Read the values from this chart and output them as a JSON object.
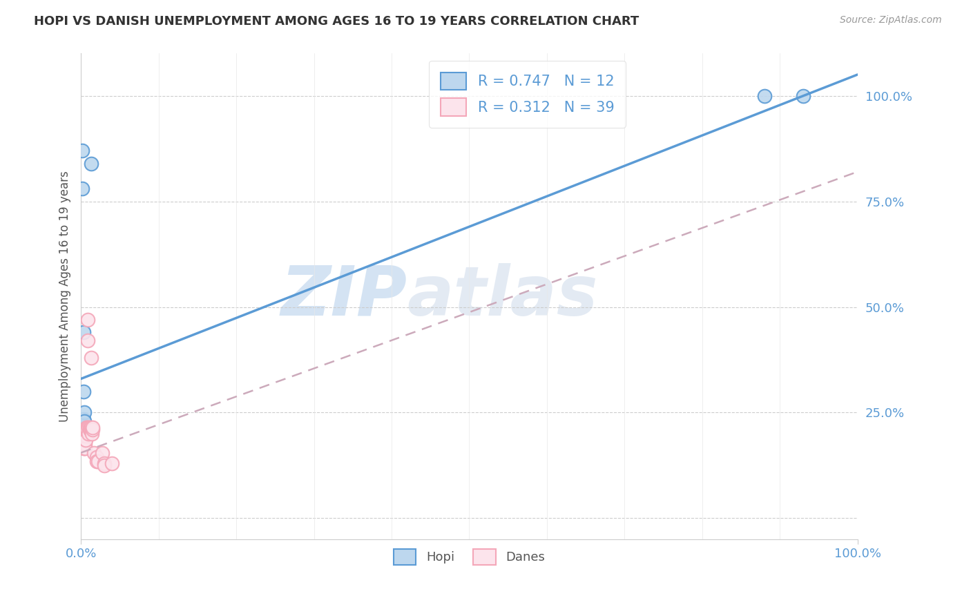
{
  "title": "HOPI VS DANISH UNEMPLOYMENT AMONG AGES 16 TO 19 YEARS CORRELATION CHART",
  "source": "Source: ZipAtlas.com",
  "ylabel": "Unemployment Among Ages 16 to 19 years",
  "background_color": "#ffffff",
  "watermark_zip": "ZIP",
  "watermark_atlas": "atlas",
  "hopi_color": "#5b9bd5",
  "hopi_fill": "#bdd7ee",
  "danes_color": "#f4a7b9",
  "danes_fill": "#fce4ec",
  "hopi_R": 0.747,
  "hopi_N": 12,
  "danes_R": 0.312,
  "danes_N": 39,
  "hopi_points": [
    [
      0.002,
      0.87
    ],
    [
      0.002,
      0.78
    ],
    [
      0.003,
      0.44
    ],
    [
      0.003,
      0.235
    ],
    [
      0.003,
      0.21
    ],
    [
      0.003,
      0.3
    ],
    [
      0.004,
      0.25
    ],
    [
      0.004,
      0.23
    ],
    [
      0.004,
      0.2
    ],
    [
      0.013,
      0.84
    ],
    [
      0.88,
      1.0
    ],
    [
      0.93,
      1.0
    ]
  ],
  "danes_points": [
    [
      0.002,
      0.175
    ],
    [
      0.003,
      0.185
    ],
    [
      0.003,
      0.17
    ],
    [
      0.003,
      0.165
    ],
    [
      0.004,
      0.195
    ],
    [
      0.004,
      0.185
    ],
    [
      0.004,
      0.175
    ],
    [
      0.004,
      0.165
    ],
    [
      0.005,
      0.2
    ],
    [
      0.005,
      0.185
    ],
    [
      0.005,
      0.175
    ],
    [
      0.005,
      0.165
    ],
    [
      0.006,
      0.195
    ],
    [
      0.006,
      0.185
    ],
    [
      0.007,
      0.215
    ],
    [
      0.007,
      0.21
    ],
    [
      0.008,
      0.215
    ],
    [
      0.008,
      0.21
    ],
    [
      0.009,
      0.42
    ],
    [
      0.009,
      0.47
    ],
    [
      0.01,
      0.215
    ],
    [
      0.01,
      0.2
    ],
    [
      0.011,
      0.215
    ],
    [
      0.011,
      0.21
    ],
    [
      0.012,
      0.21
    ],
    [
      0.013,
      0.215
    ],
    [
      0.013,
      0.38
    ],
    [
      0.014,
      0.21
    ],
    [
      0.014,
      0.2
    ],
    [
      0.015,
      0.21
    ],
    [
      0.015,
      0.215
    ],
    [
      0.017,
      0.155
    ],
    [
      0.02,
      0.145
    ],
    [
      0.02,
      0.135
    ],
    [
      0.022,
      0.135
    ],
    [
      0.027,
      0.155
    ],
    [
      0.03,
      0.13
    ],
    [
      0.03,
      0.125
    ],
    [
      0.04,
      0.13
    ]
  ],
  "hopi_line_x": [
    0.0,
    1.0
  ],
  "hopi_line_y": [
    0.33,
    1.05
  ],
  "danes_line_x": [
    0.0,
    1.0
  ],
  "danes_line_y": [
    0.155,
    0.82
  ],
  "xlim": [
    0.0,
    1.0
  ],
  "ylim": [
    -0.05,
    1.1
  ],
  "xtick_positions": [
    0.0,
    1.0
  ],
  "xtick_labels": [
    "0.0%",
    "100.0%"
  ],
  "ytick_positions": [
    0.0,
    0.25,
    0.5,
    0.75,
    1.0
  ],
  "ytick_labels": [
    "",
    "25.0%",
    "50.0%",
    "75.0%",
    "100.0%"
  ],
  "grid_color": "#cccccc",
  "title_color": "#333333",
  "tick_label_color": "#5b9bd5",
  "legend_text_color": "#5b9bd5"
}
